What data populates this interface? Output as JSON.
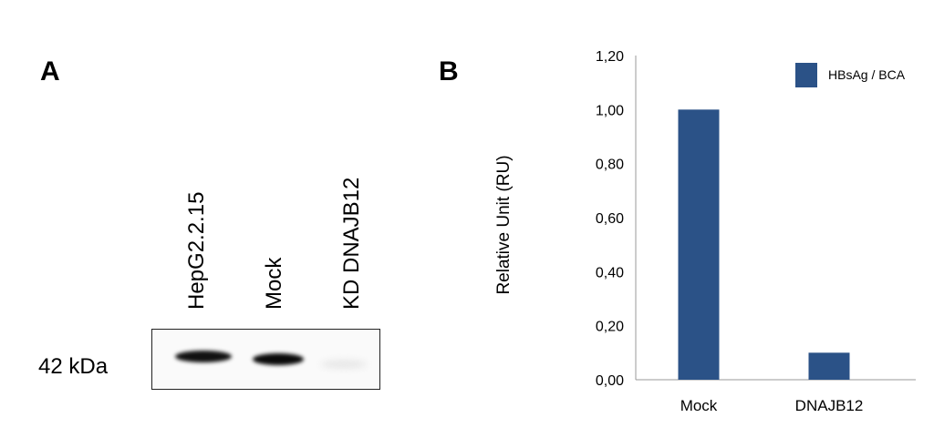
{
  "panel_a": {
    "letter": "A",
    "lane_labels": [
      "HepG2.2.15",
      "Mock",
      "KD DNAJB12"
    ],
    "marker_label": "42 kDa"
  },
  "panel_b": {
    "letter": "B"
  },
  "chart_data": {
    "type": "bar",
    "categories": [
      "Mock",
      "DNAJB12"
    ],
    "series": [
      {
        "name": "HBsAg / BCA",
        "values": [
          1.0,
          0.1
        ]
      }
    ],
    "ylabel": "Relative Unit (RU)",
    "xlabel": "",
    "title": "",
    "ylim": [
      0,
      1.2
    ],
    "yticks": [
      "0,00",
      "0,20",
      "0,40",
      "0,60",
      "0,80",
      "1,00",
      "1,20"
    ],
    "legend_position": "top-right",
    "bar_color": "#2b5287",
    "grid": false
  }
}
